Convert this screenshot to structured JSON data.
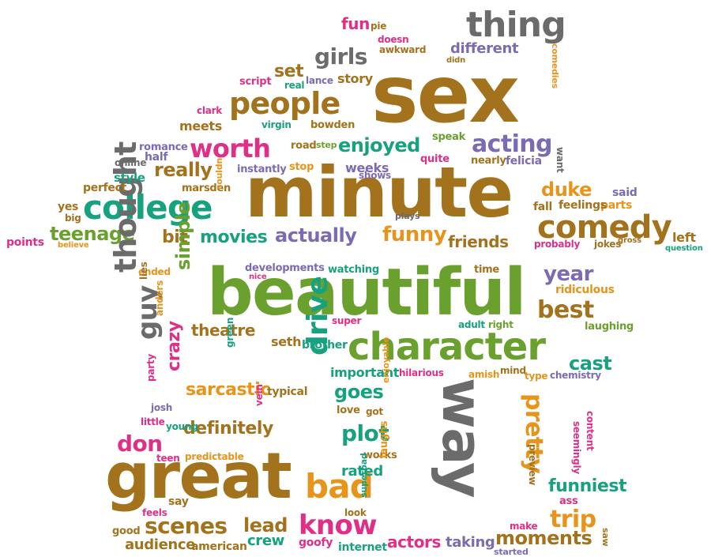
{
  "colors": {
    "brown": "#a3721d",
    "green": "#6aa12e",
    "teal": "#17a17e",
    "orange": "#e7941c",
    "pink": "#df2f86",
    "purple": "#7b6bb2",
    "gray": "#6b6b6b"
  },
  "words": [
    {
      "text": "sex",
      "color": "brown"
    },
    {
      "text": "minute",
      "color": "brown"
    },
    {
      "text": "beautiful",
      "color": "green"
    },
    {
      "text": "great",
      "color": "brown"
    },
    {
      "text": "way",
      "color": "gray"
    },
    {
      "text": "character",
      "color": "green"
    },
    {
      "text": "people",
      "color": "brown"
    },
    {
      "text": "college",
      "color": "teal"
    },
    {
      "text": "thing",
      "color": "gray"
    },
    {
      "text": "comedy",
      "color": "brown"
    },
    {
      "text": "worth",
      "color": "pink"
    },
    {
      "text": "acting",
      "color": "purple"
    },
    {
      "text": "girls",
      "color": "gray"
    },
    {
      "text": "enjoyed",
      "color": "teal"
    },
    {
      "text": "really",
      "color": "brown"
    },
    {
      "text": "duke",
      "color": "orange"
    },
    {
      "text": "teenage",
      "color": "green"
    },
    {
      "text": "movies",
      "color": "teal"
    },
    {
      "text": "actually",
      "color": "purple"
    },
    {
      "text": "funny",
      "color": "orange"
    },
    {
      "text": "friends",
      "color": "brown"
    },
    {
      "text": "bit",
      "color": "brown"
    },
    {
      "text": "set",
      "color": "brown"
    },
    {
      "text": "fun",
      "color": "pink"
    },
    {
      "text": "different",
      "color": "purple"
    },
    {
      "text": "story",
      "color": "brown"
    },
    {
      "text": "meets",
      "color": "brown"
    },
    {
      "text": "thought",
      "color": "gray"
    },
    {
      "text": "simple",
      "color": "green"
    },
    {
      "text": "guy",
      "color": "gray"
    },
    {
      "text": "theatre",
      "color": "brown"
    },
    {
      "text": "drive",
      "color": "teal"
    },
    {
      "text": "year",
      "color": "purple"
    },
    {
      "text": "best",
      "color": "brown"
    },
    {
      "text": "cast",
      "color": "teal"
    },
    {
      "text": "pretty",
      "color": "orange"
    },
    {
      "text": "plot",
      "color": "teal"
    },
    {
      "text": "goes",
      "color": "teal"
    },
    {
      "text": "sarcastic",
      "color": "orange"
    },
    {
      "text": "crazy",
      "color": "pink"
    },
    {
      "text": "don",
      "color": "pink"
    },
    {
      "text": "definitely",
      "color": "brown"
    },
    {
      "text": "bad",
      "color": "orange"
    },
    {
      "text": "know",
      "color": "pink"
    },
    {
      "text": "scenes",
      "color": "brown"
    },
    {
      "text": "lead",
      "color": "brown"
    },
    {
      "text": "crew",
      "color": "teal"
    },
    {
      "text": "actors",
      "color": "pink"
    },
    {
      "text": "taking",
      "color": "purple"
    },
    {
      "text": "moments",
      "color": "brown"
    },
    {
      "text": "trip",
      "color": "orange"
    },
    {
      "text": "funniest",
      "color": "teal"
    },
    {
      "text": "rated",
      "color": "teal"
    },
    {
      "text": "important",
      "color": "teal"
    },
    {
      "text": "hilarious",
      "color": "pink"
    },
    {
      "text": "audience",
      "color": "brown"
    },
    {
      "text": "american",
      "color": "brown"
    },
    {
      "text": "goofy",
      "color": "pink"
    },
    {
      "text": "internet",
      "color": "teal"
    },
    {
      "text": "good",
      "color": "brown"
    },
    {
      "text": "feels",
      "color": "pink"
    },
    {
      "text": "say",
      "color": "brown"
    },
    {
      "text": "teen",
      "color": "pink"
    },
    {
      "text": "young",
      "color": "teal"
    },
    {
      "text": "little",
      "color": "pink"
    },
    {
      "text": "josh",
      "color": "purple"
    },
    {
      "text": "party",
      "color": "pink"
    },
    {
      "text": "predictable",
      "color": "orange"
    },
    {
      "text": "typical",
      "color": "brown"
    },
    {
      "text": "love",
      "color": "brown"
    },
    {
      "text": "got",
      "color": "brown"
    },
    {
      "text": "works",
      "color": "brown"
    },
    {
      "text": "laughs",
      "color": "orange"
    },
    {
      "text": "superbad",
      "color": "teal"
    },
    {
      "text": "look",
      "color": "brown"
    },
    {
      "text": "seth",
      "color": "brown"
    },
    {
      "text": "brother",
      "color": "teal"
    },
    {
      "text": "super",
      "color": "pink"
    },
    {
      "text": "watching",
      "color": "teal"
    },
    {
      "text": "developments",
      "color": "purple"
    },
    {
      "text": "nice",
      "color": "pink"
    },
    {
      "text": "time",
      "color": "brown"
    },
    {
      "text": "ridiculous",
      "color": "orange"
    },
    {
      "text": "adult",
      "color": "teal"
    },
    {
      "text": "right",
      "color": "green"
    },
    {
      "text": "laughing",
      "color": "green"
    },
    {
      "text": "amish",
      "color": "orange"
    },
    {
      "text": "mind",
      "color": "brown"
    },
    {
      "text": "type",
      "color": "orange"
    },
    {
      "text": "chemistry",
      "color": "purple"
    },
    {
      "text": "preview",
      "color": "brown"
    },
    {
      "text": "seemingly",
      "color": "pink"
    },
    {
      "text": "content",
      "color": "pink"
    },
    {
      "text": "ass",
      "color": "pink"
    },
    {
      "text": "make",
      "color": "pink"
    },
    {
      "text": "saw",
      "color": "brown"
    },
    {
      "text": "started",
      "color": "purple"
    },
    {
      "text": "ended",
      "color": "orange"
    },
    {
      "text": "lies",
      "color": "brown"
    },
    {
      "text": "anders",
      "color": "orange"
    },
    {
      "text": "green",
      "color": "teal"
    },
    {
      "text": "vein",
      "color": "pink"
    },
    {
      "text": "enjoyable",
      "color": "orange"
    },
    {
      "text": "points",
      "color": "pink"
    },
    {
      "text": "believe",
      "color": "orange"
    },
    {
      "text": "yes",
      "color": "brown"
    },
    {
      "text": "big",
      "color": "brown"
    },
    {
      "text": "perfect",
      "color": "brown"
    },
    {
      "text": "style",
      "color": "teal"
    },
    {
      "text": "online",
      "color": "gray"
    },
    {
      "text": "half",
      "color": "purple"
    },
    {
      "text": "romance",
      "color": "purple"
    },
    {
      "text": "marsden",
      "color": "brown"
    },
    {
      "text": "couldn",
      "color": "orange"
    },
    {
      "text": "instantly",
      "color": "purple"
    },
    {
      "text": "stop",
      "color": "orange"
    },
    {
      "text": "weeks",
      "color": "purple"
    },
    {
      "text": "shows",
      "color": "purple"
    },
    {
      "text": "quite",
      "color": "pink"
    },
    {
      "text": "road",
      "color": "brown"
    },
    {
      "text": "step",
      "color": "green"
    },
    {
      "text": "speak",
      "color": "green"
    },
    {
      "text": "nearly",
      "color": "brown"
    },
    {
      "text": "felicia",
      "color": "purple"
    },
    {
      "text": "want",
      "color": "gray"
    },
    {
      "text": "said",
      "color": "purple"
    },
    {
      "text": "parts",
      "color": "orange"
    },
    {
      "text": "feelings",
      "color": "brown"
    },
    {
      "text": "fall",
      "color": "brown"
    },
    {
      "text": "plays",
      "color": "gray"
    },
    {
      "text": "probably",
      "color": "pink"
    },
    {
      "text": "jokes",
      "color": "brown"
    },
    {
      "text": "gross",
      "color": "brown"
    },
    {
      "text": "left",
      "color": "brown"
    },
    {
      "text": "question",
      "color": "teal"
    },
    {
      "text": "clark",
      "color": "pink"
    },
    {
      "text": "virgin",
      "color": "teal"
    },
    {
      "text": "bowden",
      "color": "brown"
    },
    {
      "text": "script",
      "color": "pink"
    },
    {
      "text": "real",
      "color": "teal"
    },
    {
      "text": "lance",
      "color": "purple"
    },
    {
      "text": "pie",
      "color": "brown"
    },
    {
      "text": "doesn",
      "color": "pink"
    },
    {
      "text": "awkward",
      "color": "brown"
    },
    {
      "text": "didn",
      "color": "brown"
    },
    {
      "text": "comedies",
      "color": "orange"
    }
  ]
}
